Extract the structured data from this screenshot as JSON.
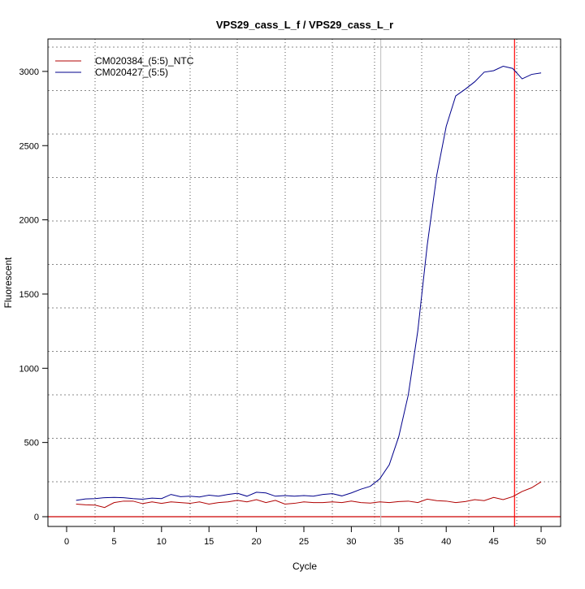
{
  "chart_data": {
    "type": "line",
    "title": "VPS29_cass_L_f / VPS29_cass_L_r",
    "xlabel": "Cycle",
    "ylabel": "Fluorescent",
    "xlim": [
      -2,
      52
    ],
    "ylim": [
      -60,
      3120
    ],
    "xticks": [
      0,
      5,
      10,
      15,
      20,
      25,
      30,
      35,
      40,
      45,
      50
    ],
    "yticks": [
      0,
      500,
      1000,
      1500,
      2000,
      2500,
      3000
    ],
    "grid": true,
    "legend_position": "top-left",
    "threshold_line": 0,
    "vertical_markers": [
      {
        "x": 33.1,
        "color": "#c8c8c8"
      },
      {
        "x": 47.2,
        "color": "#ff0000"
      }
    ],
    "x": [
      1,
      2,
      3,
      4,
      5,
      6,
      7,
      8,
      9,
      10,
      11,
      12,
      13,
      14,
      15,
      16,
      17,
      18,
      19,
      20,
      21,
      22,
      23,
      24,
      25,
      26,
      27,
      28,
      29,
      30,
      31,
      32,
      33,
      34,
      35,
      36,
      37,
      38,
      39,
      40,
      41,
      42,
      43,
      44,
      45,
      46,
      47,
      48,
      49,
      50
    ],
    "series": [
      {
        "name": "CM020384_(5:5)_NTC",
        "color": "#b00000",
        "values": [
          85,
          80,
          78,
          62,
          95,
          105,
          105,
          88,
          100,
          90,
          100,
          95,
          90,
          100,
          85,
          95,
          100,
          110,
          100,
          115,
          95,
          110,
          85,
          90,
          100,
          95,
          95,
          100,
          95,
          105,
          95,
          92,
          100,
          95,
          102,
          105,
          95,
          118,
          108,
          105,
          95,
          102,
          115,
          108,
          130,
          115,
          135,
          170,
          195,
          235
        ]
      },
      {
        "name": "CM020427_(5:5)",
        "color": "#00008b",
        "values": [
          110,
          120,
          122,
          128,
          130,
          128,
          122,
          118,
          125,
          122,
          150,
          135,
          138,
          133,
          145,
          138,
          150,
          158,
          138,
          165,
          160,
          138,
          142,
          138,
          142,
          138,
          150,
          155,
          140,
          160,
          185,
          205,
          255,
          350,
          540,
          820,
          1250,
          1830,
          2300,
          2630,
          2835,
          2880,
          2930,
          2995,
          3005,
          3035,
          3020,
          2950,
          2980,
          2990
        ]
      }
    ]
  }
}
